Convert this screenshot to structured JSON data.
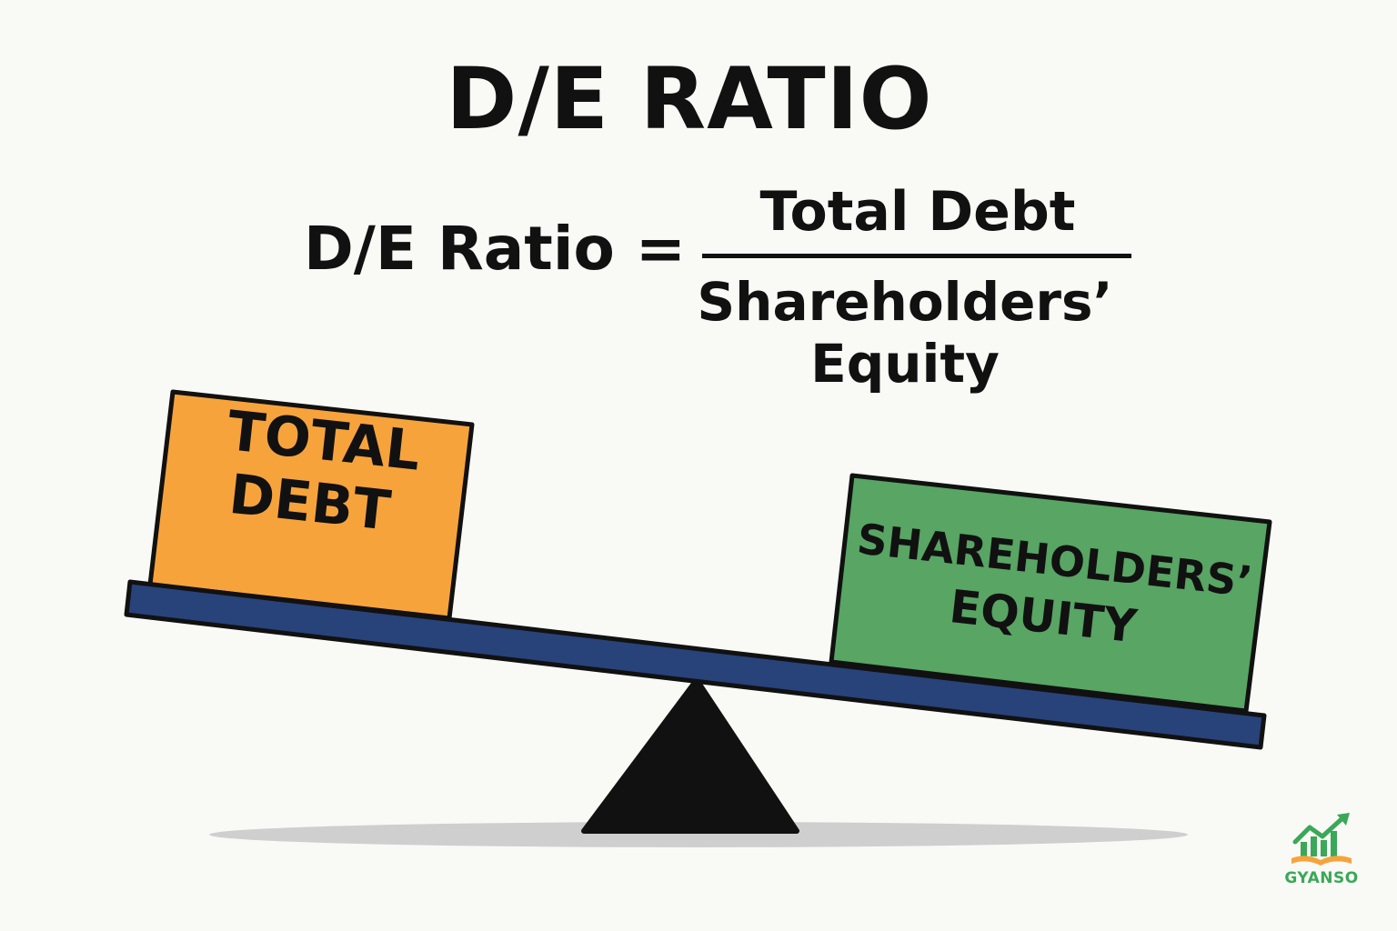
{
  "title": "D/E RATIO",
  "formula": {
    "lhs": "D/E Ratio =",
    "numerator": "Total Debt",
    "denominator_line1": "Shareholders’",
    "denominator_line2": "Equity"
  },
  "seesaw": {
    "left_box": {
      "line1": "TOTAL",
      "line2": "DEBT",
      "color": "#f7a33c"
    },
    "right_box": {
      "line1": "SHAREHOLDERS’",
      "line2": "EQUITY",
      "color": "#58a564"
    },
    "beam_color": "#28427a",
    "fulcrum_color": "#111111"
  },
  "logo": {
    "text": "GYANSO",
    "icon": "growth-chart-book-icon"
  }
}
